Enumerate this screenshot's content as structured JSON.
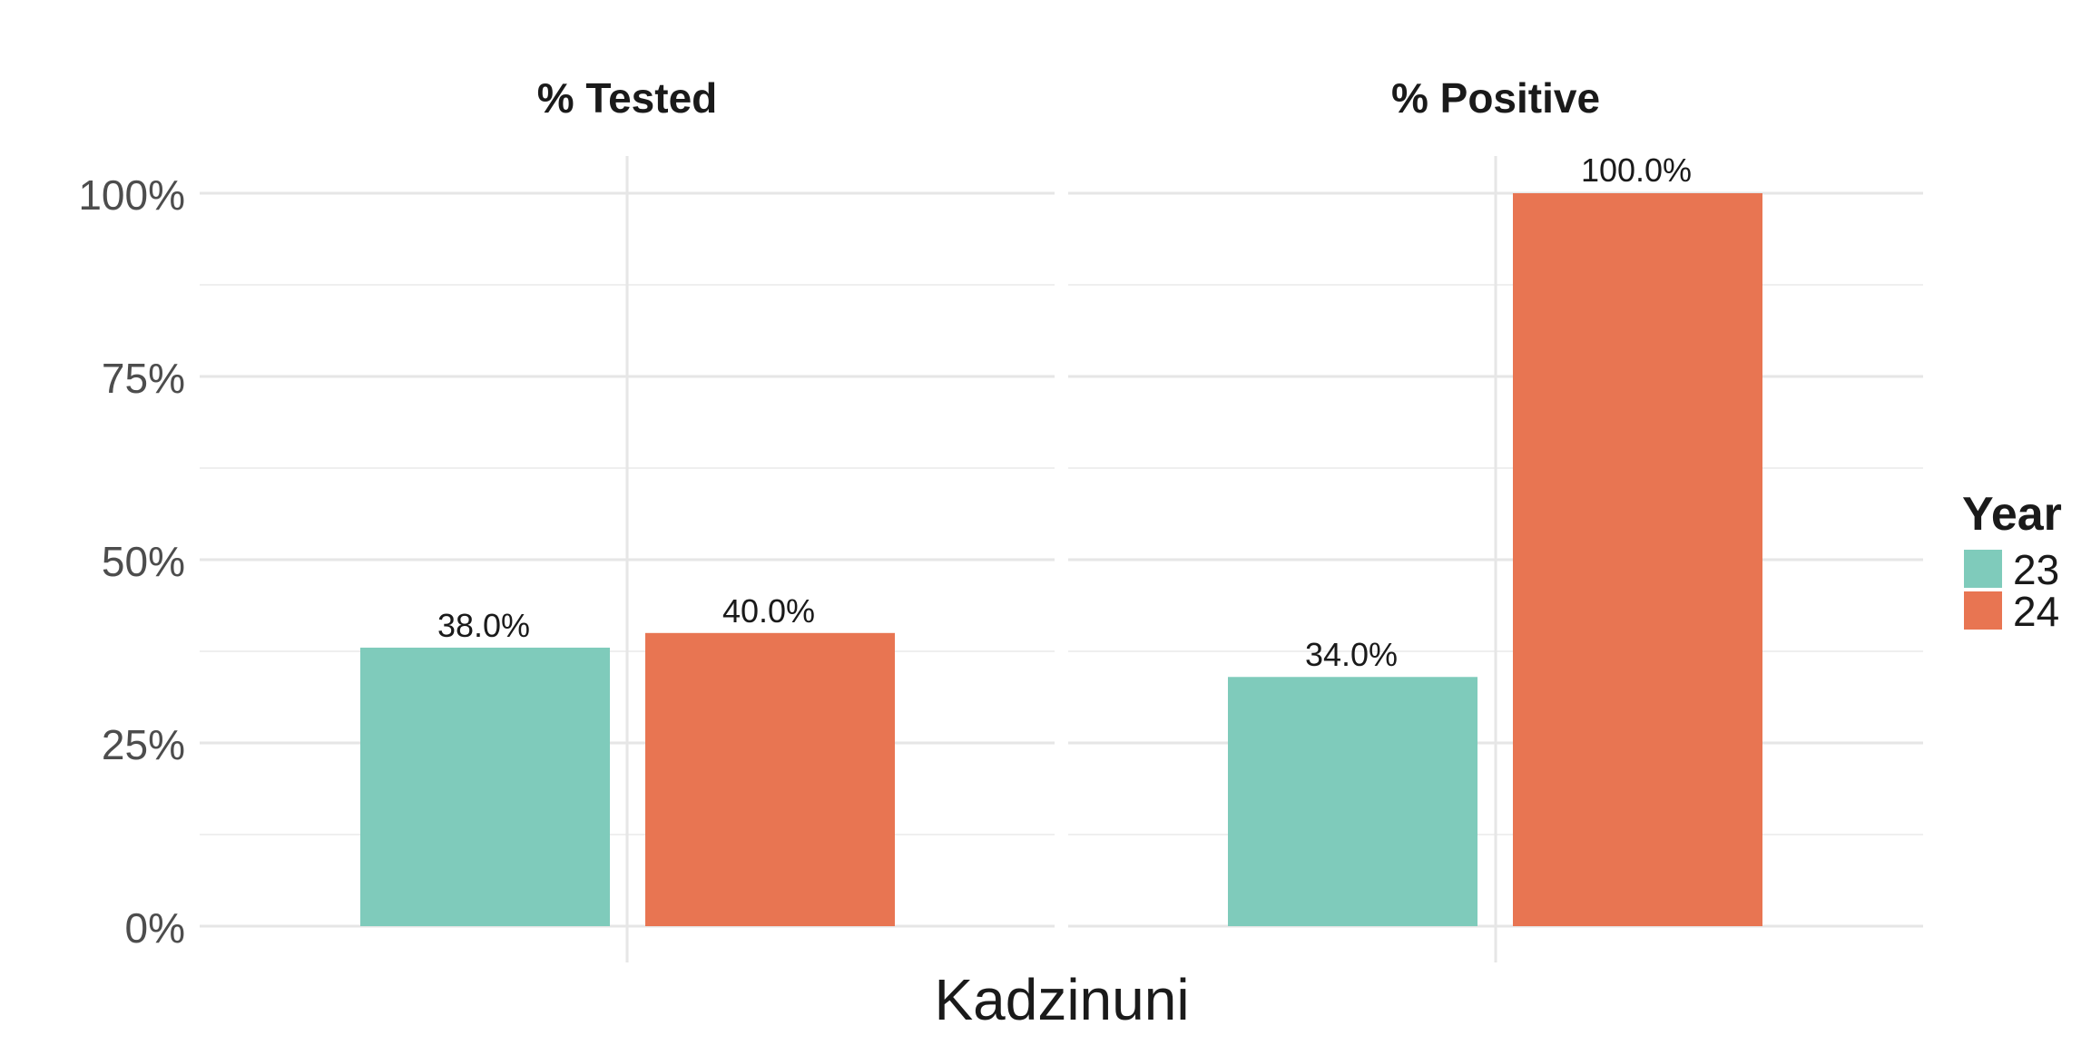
{
  "chart_data": {
    "type": "bar",
    "xlabel": "Kadzinuni",
    "ylim": [
      0,
      1
    ],
    "y_ticks": [
      "0%",
      "25%",
      "50%",
      "75%",
      "100%"
    ],
    "grid": true,
    "legend": {
      "title": "Year",
      "placement": "right",
      "entries": [
        {
          "label": "23",
          "color": "#7fcbbb"
        },
        {
          "label": "24",
          "color": "#e87552"
        }
      ]
    },
    "facets": [
      {
        "title": "% Tested",
        "series": [
          {
            "name": "23",
            "value": 0.38,
            "label": "38.0%"
          },
          {
            "name": "24",
            "value": 0.4,
            "label": "40.0%"
          }
        ]
      },
      {
        "title": "% Positive",
        "series": [
          {
            "name": "23",
            "value": 0.34,
            "label": "34.0%"
          },
          {
            "name": "24",
            "value": 1.0,
            "label": "100.0%"
          }
        ]
      }
    ]
  }
}
